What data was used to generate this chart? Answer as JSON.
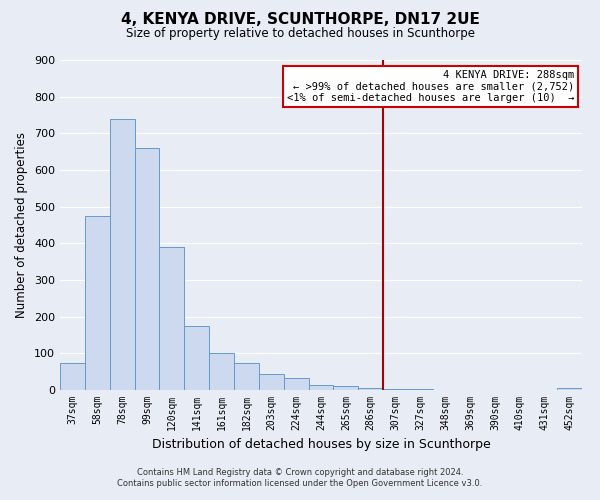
{
  "title": "4, KENYA DRIVE, SCUNTHORPE, DN17 2UE",
  "subtitle": "Size of property relative to detached houses in Scunthorpe",
  "xlabel": "Distribution of detached houses by size in Scunthorpe",
  "ylabel": "Number of detached properties",
  "bar_labels": [
    "37sqm",
    "58sqm",
    "78sqm",
    "99sqm",
    "120sqm",
    "141sqm",
    "161sqm",
    "182sqm",
    "203sqm",
    "224sqm",
    "244sqm",
    "265sqm",
    "286sqm",
    "307sqm",
    "327sqm",
    "348sqm",
    "369sqm",
    "390sqm",
    "410sqm",
    "431sqm",
    "452sqm"
  ],
  "bar_values": [
    75,
    475,
    740,
    660,
    390,
    175,
    100,
    75,
    45,
    32,
    15,
    10,
    5,
    3,
    2,
    1,
    1,
    0,
    0,
    0,
    5
  ],
  "bar_color": "#ccd9ee",
  "bar_edge_color": "#6699cc",
  "background_color": "#e8edf5",
  "grid_color": "#d0d8e8",
  "ylim": [
    0,
    900
  ],
  "yticks": [
    0,
    100,
    200,
    300,
    400,
    500,
    600,
    700,
    800,
    900
  ],
  "vline_x_index": 12,
  "vline_color": "#aa0000",
  "annotation_title": "4 KENYA DRIVE: 288sqm",
  "annotation_line1": "← >99% of detached houses are smaller (2,752)",
  "annotation_line2": "<1% of semi-detached houses are larger (10)  →",
  "annotation_box_color": "#ffffff",
  "annotation_border_color": "#cc0000",
  "footer_line1": "Contains HM Land Registry data © Crown copyright and database right 2024.",
  "footer_line2": "Contains public sector information licensed under the Open Government Licence v3.0."
}
